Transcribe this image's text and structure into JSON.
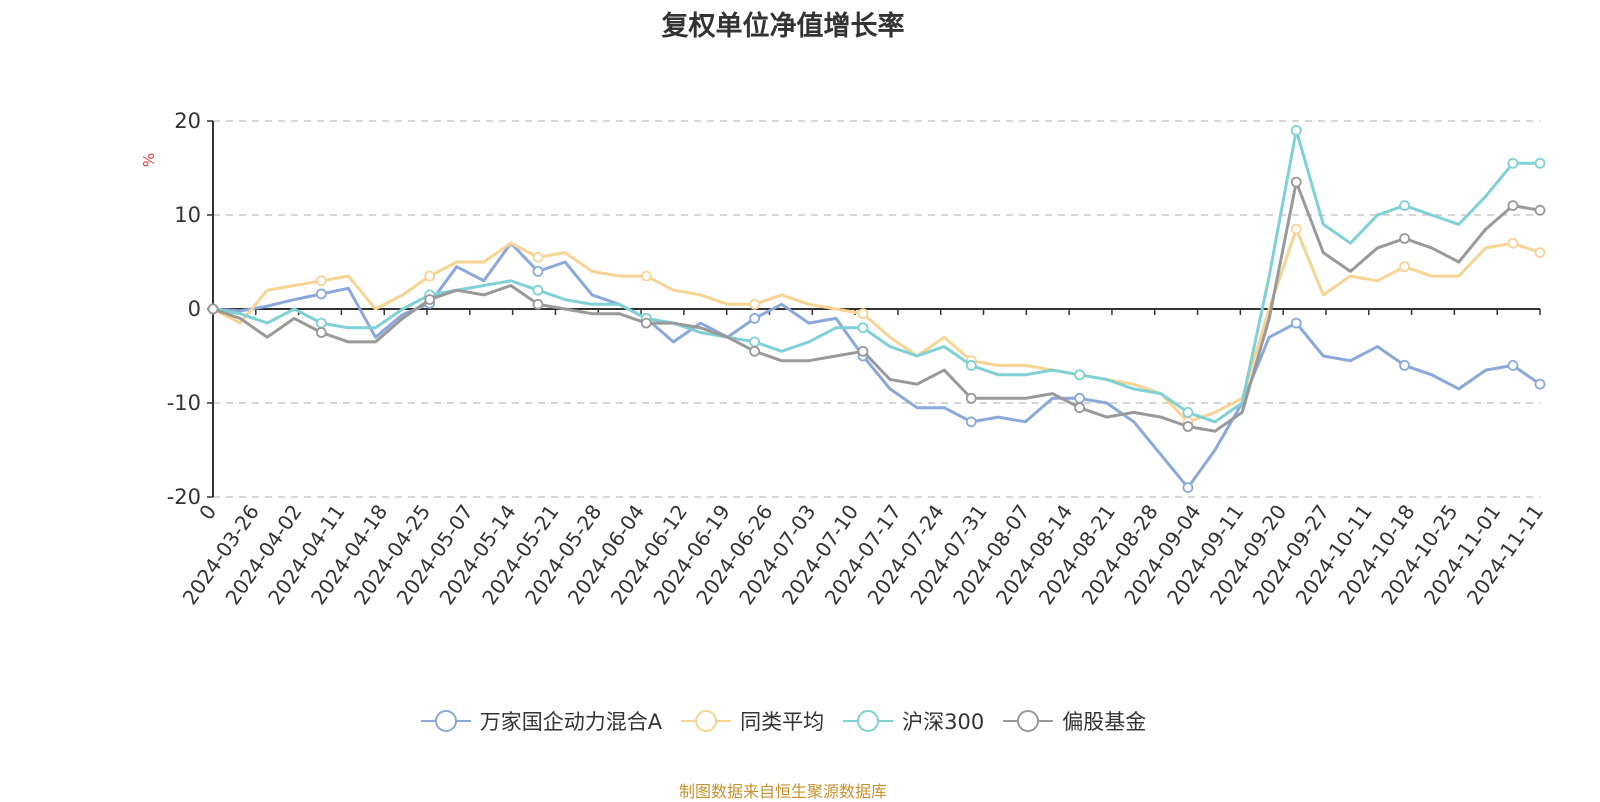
{
  "chart_data": {
    "type": "line",
    "title": "复权单位净值增长率",
    "ylabel": "%",
    "ylim": [
      -20,
      20
    ],
    "yticks": [
      20,
      10,
      0,
      -10,
      -20
    ],
    "xtick_labels": [
      "0",
      "2024-03-26",
      "2024-04-02",
      "2024-04-11",
      "2024-04-18",
      "2024-04-25",
      "2024-05-07",
      "2024-05-14",
      "2024-05-21",
      "2024-05-28",
      "2024-06-04",
      "2024-06-12",
      "2024-06-19",
      "2024-06-26",
      "2024-07-03",
      "2024-07-10",
      "2024-07-17",
      "2024-07-24",
      "2024-07-31",
      "2024-08-07",
      "2024-08-14",
      "2024-08-21",
      "2024-08-28",
      "2024-09-04",
      "2024-09-11",
      "2024-09-20",
      "2024-09-27",
      "2024-10-11",
      "2024-10-18",
      "2024-10-25",
      "2024-11-01",
      "2024-11-11"
    ],
    "grid": "horizontal dashed",
    "legend_position": "bottom",
    "series": [
      {
        "name": "万家国企动力混合A",
        "color": "#8aa8d9",
        "values": [
          0,
          -0.2,
          0.3,
          1.0,
          1.6,
          2.2,
          -3.0,
          -0.6,
          0.6,
          4.5,
          3.0,
          7.0,
          4.0,
          5.0,
          1.5,
          0.5,
          -1.0,
          -3.5,
          -1.5,
          -3.0,
          -1.0,
          0.5,
          -1.5,
          -1.0,
          -5.0,
          -8.5,
          -10.5,
          -10.5,
          -12.0,
          -11.5,
          -12.0,
          -9.5,
          -9.5,
          -10.0,
          -12.0,
          -15.5,
          -19.0,
          -15.0,
          -10.0,
          -3.0,
          -1.5,
          -5.0,
          -5.5,
          -4.0,
          -6.0,
          -7.0,
          -8.5,
          -6.5,
          -6.0,
          -8.0
        ]
      },
      {
        "name": "同类平均",
        "color": "#f7d494",
        "values": [
          0,
          -1.5,
          2.0,
          2.5,
          3.0,
          3.5,
          0.0,
          1.5,
          3.5,
          5.0,
          5.0,
          7.0,
          5.5,
          6.0,
          4.0,
          3.5,
          3.5,
          2.0,
          1.5,
          0.5,
          0.5,
          1.5,
          0.5,
          0.0,
          -0.5,
          -3.0,
          -5.0,
          -3.0,
          -5.5,
          -6.0,
          -6.0,
          -6.5,
          -7.0,
          -7.5,
          -8.0,
          -9.0,
          -12.0,
          -11.0,
          -9.5,
          0.0,
          8.5,
          1.5,
          3.5,
          3.0,
          4.5,
          3.5,
          3.5,
          6.5,
          7.0,
          6.0
        ]
      },
      {
        "name": "沪深300",
        "color": "#7fd1d6",
        "values": [
          0,
          -0.5,
          -1.5,
          0.0,
          -1.5,
          -2.0,
          -2.0,
          0.0,
          1.5,
          2.0,
          2.5,
          3.0,
          2.0,
          1.0,
          0.5,
          0.5,
          -1.0,
          -1.5,
          -2.5,
          -3.0,
          -3.5,
          -4.5,
          -3.5,
          -2.0,
          -2.0,
          -4.0,
          -5.0,
          -4.0,
          -6.0,
          -7.0,
          -7.0,
          -6.5,
          -7.0,
          -7.5,
          -8.5,
          -9.0,
          -11.0,
          -12.0,
          -10.0,
          3.5,
          19.0,
          9.0,
          7.0,
          10.0,
          11.0,
          10.0,
          9.0,
          12.0,
          15.5,
          15.5
        ]
      },
      {
        "name": "偏股基金",
        "color": "#999999",
        "values": [
          0,
          -1.0,
          -3.0,
          -1.0,
          -2.5,
          -3.5,
          -3.5,
          -1.0,
          1.0,
          2.0,
          1.5,
          2.5,
          0.5,
          0.0,
          -0.5,
          -0.5,
          -1.5,
          -1.5,
          -2.0,
          -3.0,
          -4.5,
          -5.5,
          -5.5,
          -5.0,
          -4.5,
          -7.5,
          -8.0,
          -6.5,
          -9.5,
          -9.5,
          -9.5,
          -9.0,
          -10.5,
          -11.5,
          -11.0,
          -11.5,
          -12.5,
          -13.0,
          -11.0,
          -1.0,
          13.5,
          6.0,
          4.0,
          6.5,
          7.5,
          6.5,
          5.0,
          8.5,
          11.0,
          10.5
        ]
      }
    ]
  },
  "legend": {
    "items": [
      "万家国企动力混合A",
      "同类平均",
      "沪深300",
      "偏股基金"
    ]
  },
  "source_note": "制图数据来自恒生聚源数据库"
}
